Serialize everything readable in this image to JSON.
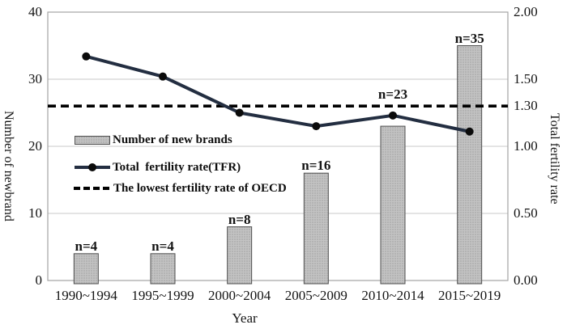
{
  "chart_data": {
    "type": "combo-bar-line",
    "categories": [
      "1990~1994",
      "1995~1999",
      "2000~2004",
      "2005~2009",
      "2010~2014",
      "2015~2019"
    ],
    "xlabel": "Year",
    "left_axis": {
      "label": "Number of newbrand",
      "min": 0,
      "max": 40,
      "tick_values": [
        0,
        10,
        20,
        30,
        40
      ],
      "tick_labels": [
        "0",
        "10",
        "20",
        "30",
        "40"
      ]
    },
    "right_axis": {
      "label": "Total fertility rate",
      "min": 0.0,
      "max": 2.0,
      "tick_values": [
        0,
        0.5,
        1.0,
        1.3,
        1.5,
        2.0
      ],
      "tick_labels": [
        "0.00",
        "0.50",
        "1.00",
        "1.30",
        "1.50",
        "2.00"
      ]
    },
    "series": [
      {
        "name": "Number of new brands",
        "type": "bar",
        "axis": "left",
        "values": [
          4,
          4,
          8,
          16,
          23,
          35
        ],
        "point_labels": [
          "n=4",
          "n=4",
          "n=8",
          "n=16",
          "n=23",
          "n=35"
        ],
        "fill": "#b3b3b3",
        "border": "#4f4f4f"
      },
      {
        "name": "Total  fertility rate(TFR)",
        "type": "line",
        "axis": "right",
        "values": [
          1.67,
          1.52,
          1.25,
          1.15,
          1.23,
          1.11
        ],
        "color": "#232e41",
        "marker_color": "#0b0b0b"
      },
      {
        "name": "The lowest fertility rate of OECD",
        "type": "reference-line",
        "axis": "right",
        "value": 1.3,
        "style": "dashed",
        "color": "#000000"
      }
    ],
    "legend": {
      "position": "inside-left"
    },
    "grid": "horizontal",
    "colors": {
      "gridline": "#c9c9c9",
      "frame": "#a3a3a3",
      "text": "#141414"
    }
  }
}
